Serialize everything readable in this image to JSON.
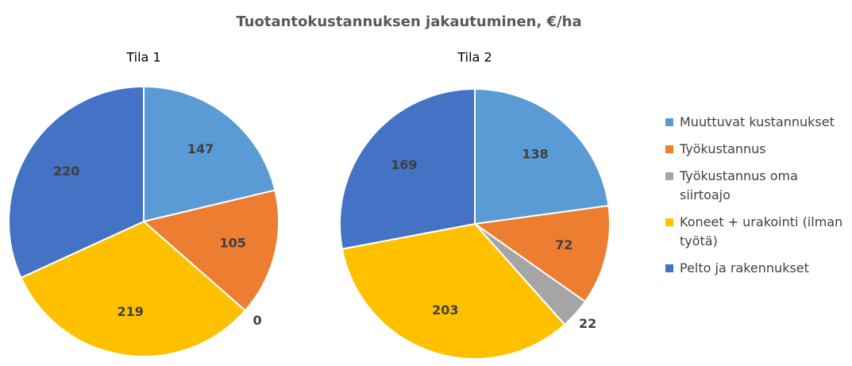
{
  "title": "Tuotantokustannuksen jakautuminen, €/ha",
  "chart_data": [
    {
      "type": "pie",
      "title": "Tila 1",
      "categories": [
        "Muuttuvat kustannukset",
        "Työkustannus",
        "Työkustannus oma siirtoajo",
        "Koneet + urakointi (ilman työtä)",
        "Pelto ja rakennukset"
      ],
      "values": [
        147,
        105,
        0,
        219,
        220
      ],
      "colors": [
        "#5b9bd5",
        "#ed7d31",
        "#a5a5a5",
        "#ffc000",
        "#4472c4"
      ]
    },
    {
      "type": "pie",
      "title": "Tila 2",
      "categories": [
        "Muuttuvat kustannukset",
        "Työkustannus",
        "Työkustannus oma siirtoajo",
        "Koneet + urakointi (ilman työtä)",
        "Pelto ja rakennukset"
      ],
      "values": [
        138,
        72,
        22,
        203,
        169
      ],
      "colors": [
        "#5b9bd5",
        "#ed7d31",
        "#a5a5a5",
        "#ffc000",
        "#4472c4"
      ]
    }
  ]
}
